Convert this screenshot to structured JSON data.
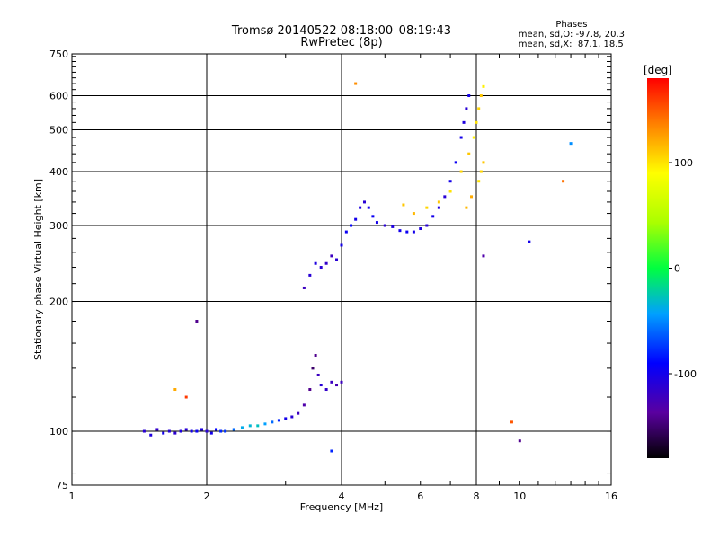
{
  "header": {
    "title": "Tromsø 20140522 08:18:00–08:19:43",
    "subtitle": "RwPretec (8p)"
  },
  "phases": {
    "title": "Phases",
    "line_o": "mean, sd,O: -97.8, 20.3",
    "line_x": "mean, sd,X:  87.1, 18.5"
  },
  "chart_data": {
    "type": "scatter",
    "xlabel": "Frequency [MHz]",
    "ylabel": "Stationary phase Virtual Height [km]",
    "xscale": "log",
    "yscale": "log",
    "xlim": [
      1,
      16
    ],
    "ylim": [
      75,
      750
    ],
    "x_major_ticks": [
      1,
      2,
      4,
      8,
      16
    ],
    "x_tick_labels": [
      "1",
      "2",
      "4",
      "6",
      "8",
      "10",
      "16"
    ],
    "x_tick_values": [
      1,
      2,
      4,
      6,
      8,
      10,
      16
    ],
    "y_tick_labels": [
      "75",
      "100",
      "200",
      "300",
      "400",
      "500",
      "600",
      "750"
    ],
    "y_tick_values": [
      75,
      100,
      200,
      300,
      400,
      500,
      600,
      750
    ],
    "colorbar": {
      "label": "[deg]",
      "ticks": [
        "100",
        "0",
        "-100"
      ],
      "tick_values": [
        100,
        0,
        -100
      ],
      "range": [
        -180,
        180
      ]
    },
    "series": [
      {
        "points": [
          [
            1.45,
            100,
            -110
          ],
          [
            1.5,
            98,
            -105
          ],
          [
            1.55,
            101,
            -115
          ],
          [
            1.6,
            99,
            -100
          ],
          [
            1.65,
            100,
            -108
          ],
          [
            1.7,
            99,
            -112
          ],
          [
            1.75,
            100,
            -104
          ],
          [
            1.8,
            101,
            -110
          ],
          [
            1.85,
            100,
            -100
          ],
          [
            1.9,
            100,
            -95
          ],
          [
            1.95,
            101,
            -105
          ],
          [
            2.0,
            100,
            -110
          ],
          [
            2.05,
            99,
            -100
          ],
          [
            2.1,
            101,
            -90
          ],
          [
            2.15,
            100,
            -80
          ],
          [
            2.2,
            100,
            -75
          ],
          [
            2.3,
            101,
            -60
          ],
          [
            2.4,
            102,
            -40
          ],
          [
            2.5,
            103,
            -35
          ],
          [
            2.6,
            103,
            -30
          ],
          [
            2.7,
            104,
            -45
          ],
          [
            2.8,
            105,
            -60
          ],
          [
            2.9,
            106,
            -80
          ],
          [
            3.0,
            107,
            -100
          ],
          [
            3.1,
            108,
            -110
          ],
          [
            3.2,
            110,
            -120
          ],
          [
            3.3,
            115,
            -130
          ],
          [
            3.4,
            125,
            -140
          ],
          [
            3.45,
            140,
            -150
          ],
          [
            3.5,
            150,
            -140
          ],
          [
            3.55,
            135,
            -120
          ],
          [
            3.6,
            128,
            -110
          ],
          [
            3.7,
            125,
            -115
          ],
          [
            3.8,
            130,
            -120
          ],
          [
            3.9,
            128,
            -125
          ],
          [
            4.0,
            130,
            -120
          ],
          [
            3.3,
            215,
            -120
          ],
          [
            3.4,
            230,
            -110
          ],
          [
            3.5,
            245,
            -105
          ],
          [
            3.6,
            240,
            -110
          ],
          [
            3.7,
            245,
            -115
          ],
          [
            3.8,
            255,
            -120
          ],
          [
            3.9,
            250,
            -110
          ],
          [
            4.0,
            270,
            -100
          ],
          [
            4.1,
            290,
            -95
          ],
          [
            4.2,
            300,
            -90
          ],
          [
            4.3,
            310,
            -100
          ],
          [
            4.4,
            330,
            -105
          ],
          [
            4.5,
            340,
            -110
          ],
          [
            4.6,
            330,
            -100
          ],
          [
            4.7,
            315,
            -95
          ],
          [
            4.8,
            305,
            -100
          ],
          [
            5.0,
            300,
            -110
          ],
          [
            5.2,
            298,
            -105
          ],
          [
            5.4,
            292,
            -100
          ],
          [
            5.6,
            290,
            -95
          ],
          [
            5.8,
            290,
            -100
          ],
          [
            6.0,
            295,
            -105
          ],
          [
            6.2,
            300,
            -110
          ],
          [
            6.4,
            315,
            -100
          ],
          [
            6.6,
            330,
            -105
          ],
          [
            6.8,
            350,
            -110
          ],
          [
            7.0,
            380,
            -100
          ],
          [
            7.2,
            420,
            -95
          ],
          [
            7.4,
            480,
            -100
          ],
          [
            7.5,
            520,
            -105
          ],
          [
            7.6,
            560,
            -110
          ],
          [
            7.7,
            600,
            -100
          ],
          [
            5.5,
            335,
            110
          ],
          [
            5.8,
            320,
            115
          ],
          [
            6.2,
            330,
            105
          ],
          [
            6.6,
            340,
            110
          ],
          [
            7.0,
            360,
            100
          ],
          [
            7.4,
            400,
            105
          ],
          [
            7.7,
            440,
            110
          ],
          [
            7.9,
            480,
            95
          ],
          [
            8.0,
            520,
            100
          ],
          [
            8.1,
            560,
            105
          ],
          [
            8.2,
            600,
            110
          ],
          [
            8.3,
            630,
            95
          ],
          [
            8.1,
            380,
            100
          ],
          [
            8.2,
            400,
            105
          ],
          [
            8.3,
            420,
            110
          ],
          [
            7.8,
            350,
            120
          ],
          [
            7.6,
            330,
            115
          ],
          [
            1.9,
            180,
            -140
          ],
          [
            4.3,
            640,
            130
          ],
          [
            10.5,
            275,
            -100
          ],
          [
            12.5,
            380,
            140
          ],
          [
            13,
            465,
            -50
          ],
          [
            8.3,
            255,
            -130
          ],
          [
            9.6,
            105,
            150
          ],
          [
            10,
            95,
            -140
          ],
          [
            3.8,
            90,
            -80
          ],
          [
            1.8,
            120,
            160
          ],
          [
            1.7,
            125,
            120
          ]
        ]
      }
    ]
  }
}
